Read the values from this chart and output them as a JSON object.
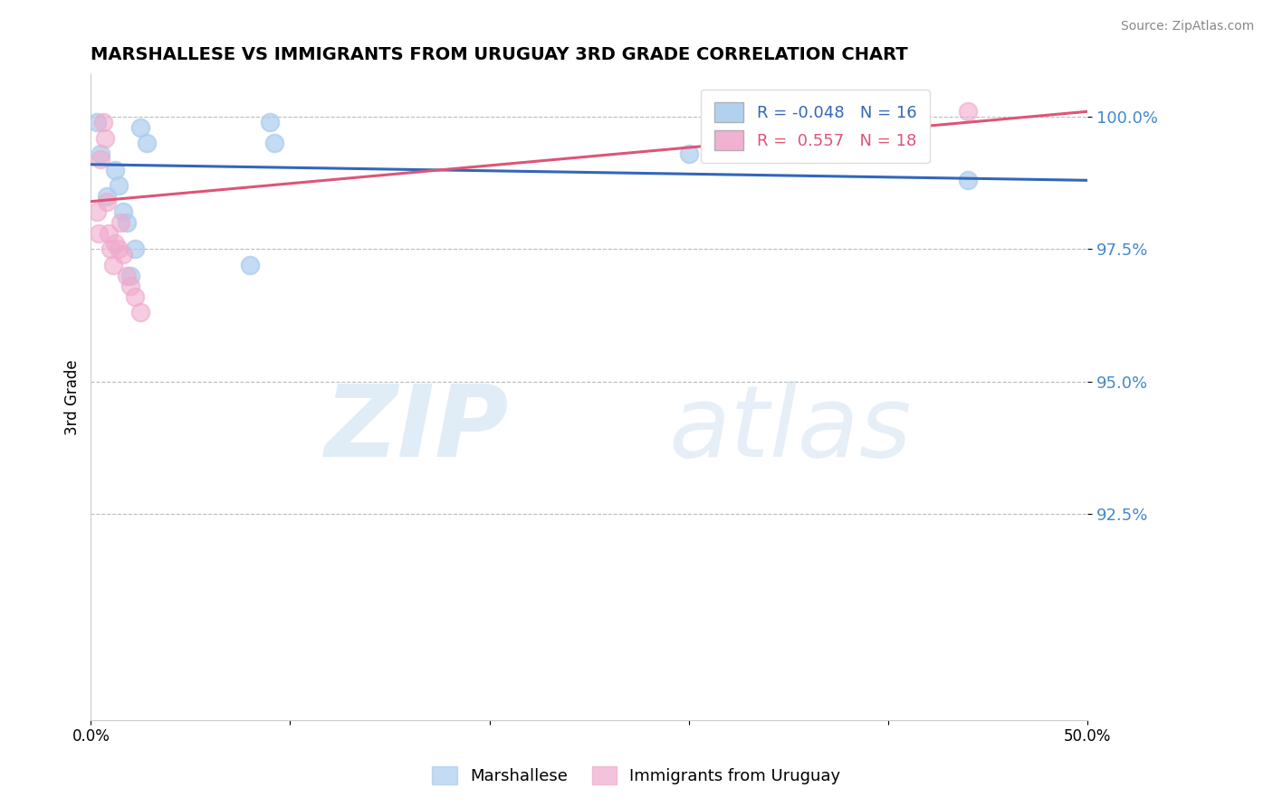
{
  "title": "MARSHALLESE VS IMMIGRANTS FROM URUGUAY 3RD GRADE CORRELATION CHART",
  "source": "Source: ZipAtlas.com",
  "ylabel": "3rd Grade",
  "xlim": [
    0.0,
    0.5
  ],
  "ylim": [
    0.886,
    1.008
  ],
  "yticks": [
    0.925,
    0.95,
    0.975,
    1.0
  ],
  "ytick_labels": [
    "92.5%",
    "95.0%",
    "97.5%",
    "100.0%"
  ],
  "xticks": [
    0.0,
    0.1,
    0.2,
    0.3,
    0.4,
    0.5
  ],
  "xtick_labels": [
    "0.0%",
    "",
    "",
    "",
    "",
    "50.0%"
  ],
  "blue_label": "Marshallese",
  "pink_label": "Immigrants from Uruguay",
  "blue_R": -0.048,
  "blue_N": 16,
  "pink_R": 0.557,
  "pink_N": 18,
  "blue_color": "#aaccee",
  "pink_color": "#f0aacc",
  "blue_line_color": "#3366bb",
  "pink_line_color": "#dd5577",
  "blue_x": [
    0.003,
    0.005,
    0.008,
    0.012,
    0.014,
    0.016,
    0.018,
    0.02,
    0.022,
    0.025,
    0.028,
    0.08,
    0.09,
    0.092,
    0.3,
    0.44
  ],
  "blue_y": [
    0.999,
    0.993,
    0.985,
    0.99,
    0.987,
    0.982,
    0.98,
    0.97,
    0.975,
    0.998,
    0.995,
    0.972,
    0.999,
    0.995,
    0.993,
    0.988
  ],
  "pink_x": [
    0.003,
    0.004,
    0.005,
    0.006,
    0.007,
    0.008,
    0.009,
    0.01,
    0.011,
    0.012,
    0.014,
    0.015,
    0.016,
    0.018,
    0.02,
    0.022,
    0.025,
    0.44
  ],
  "pink_y": [
    0.982,
    0.978,
    0.992,
    0.999,
    0.996,
    0.984,
    0.978,
    0.975,
    0.972,
    0.976,
    0.975,
    0.98,
    0.974,
    0.97,
    0.968,
    0.966,
    0.963,
    1.001
  ],
  "blue_trend_x": [
    0.0,
    0.5
  ],
  "blue_trend_y": [
    0.991,
    0.988
  ],
  "pink_trend_x": [
    0.0,
    0.5
  ],
  "pink_trend_y": [
    0.984,
    1.001
  ]
}
